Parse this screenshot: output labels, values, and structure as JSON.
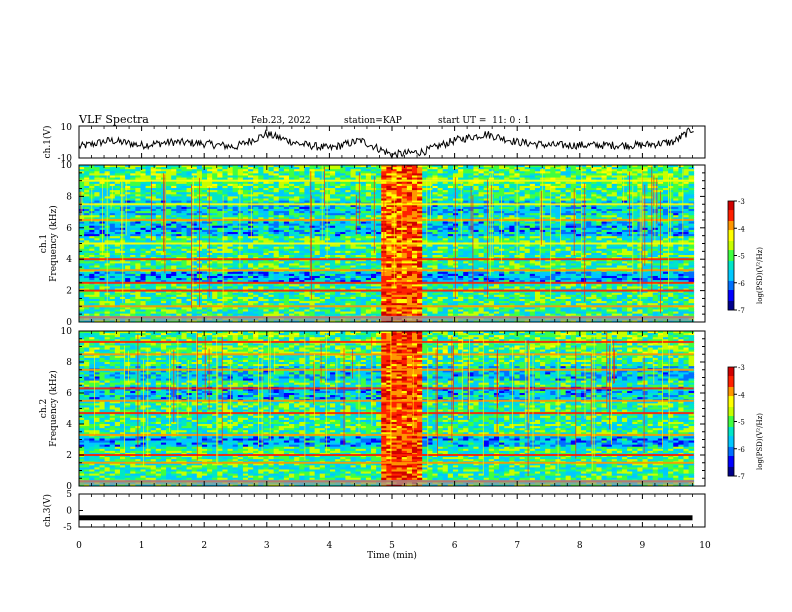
{
  "header": {
    "title": "VLF Spectra",
    "date": "Feb.23, 2022",
    "station": "station=KAP",
    "start": "start UT =  11: 0 : 1"
  },
  "chart_data": [
    {
      "type": "line",
      "panel": "ch1-waveform",
      "ylabel": "ch.1(V)",
      "ylim": [
        -10,
        10
      ],
      "xlim": [
        0,
        10
      ],
      "yticks": [
        "10",
        "-10"
      ],
      "x": [
        0,
        0.5,
        1,
        1.5,
        2,
        2.5,
        3,
        3.5,
        4,
        4.5,
        5,
        5.5,
        6,
        6.5,
        7,
        7.5,
        8,
        8.5,
        9,
        9.5,
        9.8
      ],
      "values": [
        -3,
        1,
        -2,
        0,
        -1,
        -3,
        5,
        -1,
        -4,
        1,
        -8,
        -6,
        1,
        5,
        0,
        -2,
        -2,
        -2,
        -2,
        0,
        8
      ]
    },
    {
      "type": "heatmap",
      "panel": "ch1-spectrogram",
      "ylabel_top": "ch.1",
      "ylabel": "Frequency (kHz)",
      "ylim": [
        0,
        10
      ],
      "xlim": [
        0,
        10
      ],
      "yticks": [
        "0",
        "2",
        "4",
        "6",
        "8",
        "10"
      ],
      "colorbar": {
        "label": "log(PSD)(V²/Hz)",
        "range": [
          -7,
          -3
        ],
        "ticks": [
          "-3",
          "-4",
          "-5",
          "-6",
          "-7"
        ]
      },
      "bands": [
        {
          "f": 0.3,
          "level": -3.5
        },
        {
          "f": 1.0,
          "level": -3.8
        },
        {
          "f": 2.0,
          "level": -3.6
        },
        {
          "f": 2.5,
          "level": -3.7
        },
        {
          "f": 3.3,
          "level": -4.0
        },
        {
          "f": 4.0,
          "level": -3.5
        },
        {
          "f": 5.0,
          "level": -4.2
        },
        {
          "f": 6.5,
          "level": -3.9
        },
        {
          "f": 7.5,
          "level": -4.1
        },
        {
          "f": 9.0,
          "level": -4.3
        }
      ],
      "burst": {
        "t_start": 4.85,
        "t_end": 5.45,
        "level": -3.5
      }
    },
    {
      "type": "heatmap",
      "panel": "ch2-spectrogram",
      "ylabel_top": "ch.2",
      "ylabel": "Frequency (kHz)",
      "ylim": [
        0,
        10
      ],
      "xlim": [
        0,
        10
      ],
      "yticks": [
        "0",
        "2",
        "4",
        "6",
        "8",
        "10"
      ],
      "colorbar": {
        "label": "log(PSD)(V²/Hz)",
        "range": [
          -7,
          -3
        ],
        "ticks": [
          "-3",
          "-4",
          "-5",
          "-6",
          "-7"
        ]
      },
      "bands": [
        {
          "f": 0.3,
          "level": -3.5
        },
        {
          "f": 1.5,
          "level": -4.0
        },
        {
          "f": 2.0,
          "level": -3.6
        },
        {
          "f": 3.3,
          "level": -3.8
        },
        {
          "f": 4.7,
          "level": -3.6
        },
        {
          "f": 5.5,
          "level": -4.0
        },
        {
          "f": 6.3,
          "level": -3.5
        },
        {
          "f": 7.5,
          "level": -3.8
        },
        {
          "f": 8.5,
          "level": -3.8
        },
        {
          "f": 9.3,
          "level": -3.6
        }
      ],
      "burst": {
        "t_start": 4.85,
        "t_end": 5.45,
        "level": -3.4
      }
    },
    {
      "type": "line",
      "panel": "ch3-waveform",
      "ylabel": "ch.3(V)",
      "ylim": [
        -5,
        5
      ],
      "xlim": [
        0,
        10
      ],
      "yticks": [
        "5",
        "0",
        "-5"
      ],
      "x": [
        0,
        9.8
      ],
      "values": [
        -2.2,
        -2.2
      ],
      "xlabel": "Time (min)",
      "xticks": [
        "0",
        "1",
        "2",
        "3",
        "4",
        "5",
        "6",
        "7",
        "8",
        "9",
        "10"
      ]
    }
  ],
  "colormap": [
    "#00008b",
    "#0000ff",
    "#0070ff",
    "#00c8ff",
    "#00e6c8",
    "#40ff40",
    "#c8ff00",
    "#ffff00",
    "#ff9600",
    "#ff2000",
    "#d00000"
  ]
}
